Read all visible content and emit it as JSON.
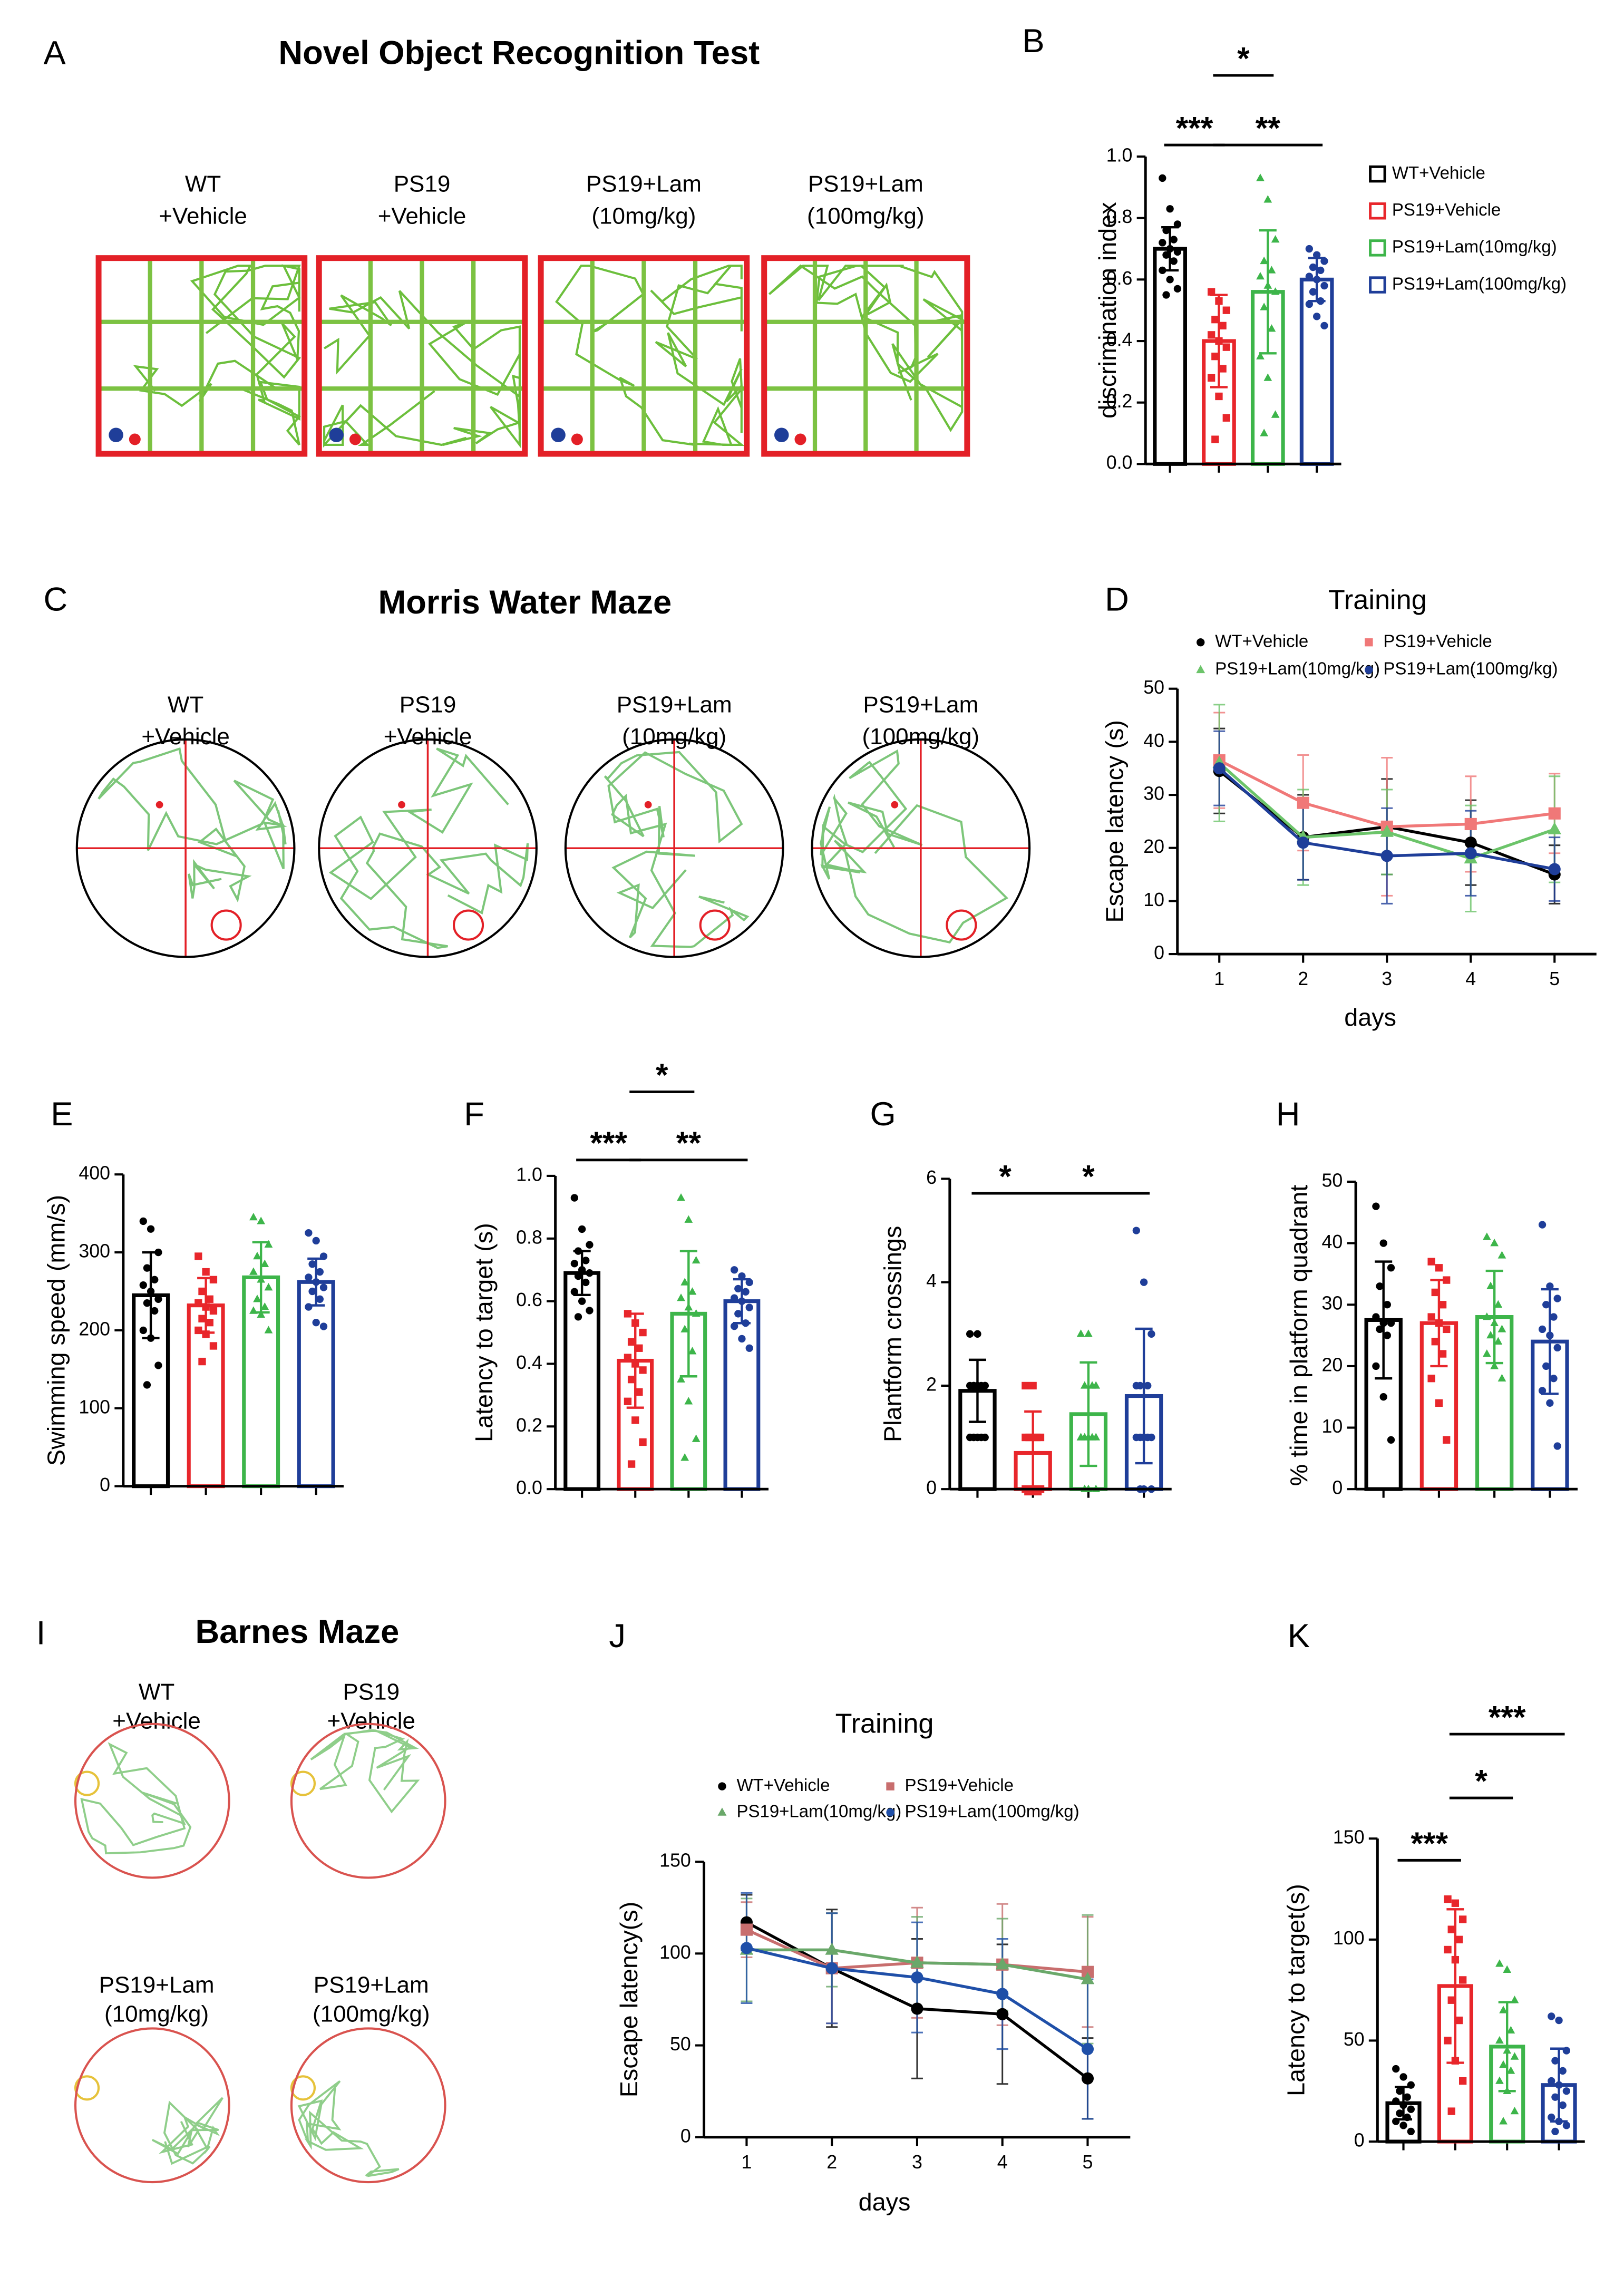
{
  "figure": {
    "panels": [
      {
        "letter": "A",
        "title": "Novel Object Recognition Test",
        "labels": [
          [
            "WT",
            "+Vehicle"
          ],
          [
            "PS19",
            "+Vehicle"
          ],
          [
            "PS19+Lam",
            "(10mg/kg)"
          ],
          [
            "PS19+Lam",
            "(100mg/kg)"
          ]
        ]
      },
      {
        "letter": "C",
        "title": "Morris Water Maze",
        "labels": [
          [
            "WT",
            "+Vehicle"
          ],
          [
            "PS19",
            "+Vehicle"
          ],
          [
            "PS19+Lam",
            "(10mg/kg)"
          ],
          [
            "PS19+Lam",
            "(100mg/kg)"
          ]
        ]
      },
      {
        "letter": "I",
        "title": "Barnes Maze",
        "labels": [
          [
            "WT",
            "+Vehicle"
          ],
          [
            "PS19",
            "+Vehicle"
          ],
          [
            "PS19+Lam",
            "(10mg/kg)"
          ],
          [
            "PS19+Lam",
            "(100mg/kg)"
          ]
        ]
      }
    ]
  },
  "chart_data": [
    {
      "type": "bar",
      "letter": "B",
      "y_label": "discrimination index",
      "ylim": [
        0,
        1.0
      ],
      "yticks": [
        {
          "value": 0,
          "label": "0.0"
        },
        {
          "value": 0.2,
          "label": "0.2"
        },
        {
          "value": 0.4,
          "label": "0.4"
        },
        {
          "value": 0.6,
          "label": "0.6"
        },
        {
          "value": 0.8,
          "label": "0.8"
        },
        {
          "value": 1.0,
          "label": "1.0"
        }
      ],
      "annotations": [
        "*",
        "***",
        "**"
      ],
      "series": [
        {
          "name": "WT+Vehicle",
          "color": "#000000",
          "marker": "circle",
          "values": [
            0.7
          ],
          "errors": [
            0.07
          ],
          "points": [
            0.93,
            0.83,
            0.78,
            0.76,
            0.73,
            0.72,
            0.7,
            0.69,
            0.68,
            0.66,
            0.63,
            0.6,
            0.57,
            0.55
          ]
        },
        {
          "name": "PS19+Vehicle",
          "color": "#e8262b",
          "marker": "square",
          "values": [
            0.4
          ],
          "errors": [
            0.15
          ],
          "points": [
            0.56,
            0.53,
            0.5,
            0.47,
            0.45,
            0.42,
            0.4,
            0.38,
            0.35,
            0.31,
            0.28,
            0.22,
            0.15,
            0.08
          ]
        },
        {
          "name": "PS19+Lam(10mg/kg)",
          "color": "#3db54a",
          "marker": "triangle",
          "values": [
            0.56
          ],
          "errors": [
            0.2
          ],
          "points": [
            0.93,
            0.86,
            0.73,
            0.66,
            0.63,
            0.61,
            0.58,
            0.56,
            0.51,
            0.44,
            0.35,
            0.28,
            0.16,
            0.1
          ]
        },
        {
          "name": "PS19+Lam(100mg/kg)",
          "color": "#1f3e99",
          "marker": "circle",
          "values": [
            0.6
          ],
          "errors": [
            0.07
          ],
          "points": [
            0.7,
            0.68,
            0.66,
            0.64,
            0.63,
            0.61,
            0.6,
            0.58,
            0.56,
            0.53,
            0.52,
            0.48,
            0.45
          ]
        }
      ]
    },
    {
      "type": "line",
      "letter": "D",
      "title": "Training",
      "x_label": "days",
      "y_label": "Escape latency (s)",
      "x": [
        1,
        2,
        3,
        4,
        5
      ],
      "xlim": [
        0.5,
        5.5
      ],
      "xticks": [
        1,
        2,
        3,
        4,
        5
      ],
      "ylim": [
        0,
        50
      ],
      "yticks": [
        0,
        10,
        20,
        30,
        40,
        50
      ],
      "series": [
        {
          "name": "WT+Vehicle",
          "color": "#000000",
          "marker": "circle",
          "values": [
            34.5,
            22,
            24,
            21,
            15
          ],
          "errors": [
            8,
            8,
            9,
            8,
            5.5
          ]
        },
        {
          "name": "PS19+Vehicle",
          "color": "#f07878",
          "marker": "square",
          "values": [
            36.5,
            28.5,
            24,
            24.5,
            26.5
          ],
          "errors": [
            9,
            9,
            13,
            9,
            7.5
          ]
        },
        {
          "name": "PS19+Lam(10mg/kg)",
          "color": "#6cc46a",
          "marker": "triangle",
          "values": [
            36,
            22,
            23,
            18,
            23.5
          ],
          "errors": [
            11,
            9,
            8,
            10,
            10
          ]
        },
        {
          "name": "PS19+Lam(100mg/kg)",
          "color": "#1f3e99",
          "marker": "circle",
          "values": [
            35,
            21,
            18.5,
            19,
            16
          ],
          "errors": [
            7,
            7,
            9,
            8,
            6
          ]
        }
      ]
    },
    {
      "type": "bar",
      "letter": "E",
      "y_label": "Swimming speed (mm/s)",
      "ylim": [
        0,
        400
      ],
      "yticks": [
        0,
        100,
        200,
        300,
        400
      ],
      "series": [
        {
          "color": "#000000",
          "marker": "circle",
          "values": [
            245
          ],
          "errors": [
            55
          ],
          "points": [
            340,
            330,
            300,
            280,
            265,
            258,
            250,
            240,
            235,
            225,
            200,
            190,
            155,
            130
          ]
        },
        {
          "color": "#e8262b",
          "marker": "square",
          "values": [
            232
          ],
          "errors": [
            35
          ],
          "points": [
            295,
            275,
            265,
            250,
            240,
            235,
            230,
            225,
            215,
            210,
            200,
            195,
            180,
            160
          ]
        },
        {
          "color": "#3db54a",
          "marker": "triangle",
          "values": [
            268
          ],
          "errors": [
            45
          ],
          "points": [
            345,
            340,
            310,
            295,
            285,
            275,
            265,
            255,
            240,
            230,
            225,
            220,
            200
          ]
        },
        {
          "color": "#1f3e99",
          "marker": "circle",
          "values": [
            262
          ],
          "errors": [
            30
          ],
          "points": [
            325,
            315,
            295,
            285,
            275,
            268,
            262,
            255,
            250,
            240,
            230,
            210,
            205
          ]
        }
      ]
    },
    {
      "type": "bar",
      "letter": "F",
      "y_label": "Latency to target (s)",
      "ylim": [
        0,
        1.0
      ],
      "yticks": [
        {
          "value": 0,
          "label": "0.0"
        },
        {
          "value": 0.2,
          "label": "0.2"
        },
        {
          "value": 0.4,
          "label": "0.4"
        },
        {
          "value": 0.6,
          "label": "0.6"
        },
        {
          "value": 0.8,
          "label": "0.8"
        },
        {
          "value": 1.0,
          "label": "1.0"
        }
      ],
      "annotations": [
        "*",
        "***",
        "**"
      ],
      "series": [
        {
          "color": "#000000",
          "marker": "circle",
          "values": [
            0.69
          ],
          "errors": [
            0.07
          ],
          "points": [
            0.93,
            0.83,
            0.78,
            0.76,
            0.73,
            0.72,
            0.7,
            0.69,
            0.68,
            0.66,
            0.63,
            0.6,
            0.57,
            0.55
          ]
        },
        {
          "color": "#e8262b",
          "marker": "square",
          "values": [
            0.41
          ],
          "errors": [
            0.15
          ],
          "points": [
            0.56,
            0.53,
            0.5,
            0.47,
            0.45,
            0.42,
            0.4,
            0.38,
            0.35,
            0.31,
            0.28,
            0.22,
            0.15,
            0.08
          ]
        },
        {
          "color": "#3db54a",
          "marker": "triangle",
          "values": [
            0.56
          ],
          "errors": [
            0.2
          ],
          "points": [
            0.93,
            0.86,
            0.73,
            0.66,
            0.63,
            0.61,
            0.58,
            0.56,
            0.51,
            0.44,
            0.35,
            0.28,
            0.16,
            0.1
          ]
        },
        {
          "color": "#1f3e99",
          "marker": "circle",
          "values": [
            0.6
          ],
          "errors": [
            0.07
          ],
          "points": [
            0.7,
            0.68,
            0.66,
            0.64,
            0.63,
            0.61,
            0.6,
            0.58,
            0.56,
            0.53,
            0.52,
            0.48,
            0.45
          ]
        }
      ]
    },
    {
      "type": "bar",
      "letter": "G",
      "y_label": "Plantform crossings",
      "ylim": [
        0,
        6
      ],
      "yticks": [
        0,
        2,
        4,
        6
      ],
      "annotations": [
        "*",
        "*"
      ],
      "series": [
        {
          "color": "#000000",
          "marker": "circle",
          "values": [
            1.9
          ],
          "errors": [
            0.6
          ],
          "points": [
            3,
            3,
            2,
            2,
            2,
            2,
            2,
            2,
            2,
            1,
            1,
            1,
            1,
            1
          ]
        },
        {
          "color": "#e8262b",
          "marker": "square",
          "values": [
            0.7
          ],
          "errors": [
            0.8
          ],
          "points": [
            2,
            2,
            1,
            1,
            1,
            1,
            1,
            0,
            0,
            0,
            0,
            0,
            0,
            0
          ]
        },
        {
          "color": "#3db54a",
          "marker": "triangle",
          "values": [
            1.45
          ],
          "errors": [
            1.0
          ],
          "points": [
            3,
            3,
            2,
            2,
            2,
            1,
            1,
            1,
            1,
            1,
            1,
            0,
            0,
            0
          ]
        },
        {
          "color": "#1f3e99",
          "marker": "circle",
          "values": [
            1.8
          ],
          "errors": [
            1.3
          ],
          "points": [
            5,
            4,
            3,
            2,
            2,
            2,
            1,
            1,
            1,
            1,
            1,
            0,
            0,
            0
          ]
        }
      ]
    },
    {
      "type": "bar",
      "letter": "H",
      "y_label": "% time in platform quadrant",
      "ylim": [
        0,
        50
      ],
      "yticks": [
        0,
        10,
        20,
        30,
        40,
        50
      ],
      "series": [
        {
          "color": "#000000",
          "marker": "circle",
          "values": [
            27.5
          ],
          "errors": [
            9.5
          ],
          "points": [
            46,
            40,
            36,
            33,
            30,
            28,
            27,
            27,
            26,
            25,
            20,
            15,
            8
          ]
        },
        {
          "color": "#e8262b",
          "marker": "square",
          "values": [
            27
          ],
          "errors": [
            7
          ],
          "points": [
            37,
            36,
            34,
            32,
            30,
            28,
            27,
            26,
            24,
            22,
            18,
            14,
            8
          ]
        },
        {
          "color": "#3db54a",
          "marker": "triangle",
          "values": [
            28
          ],
          "errors": [
            7.5
          ],
          "points": [
            41,
            40,
            38,
            33,
            30,
            28,
            27,
            26,
            25,
            24,
            22,
            20,
            18
          ]
        },
        {
          "color": "#1f3e99",
          "marker": "circle",
          "values": [
            24
          ],
          "errors": [
            8.5
          ],
          "points": [
            43,
            33,
            31,
            30,
            28,
            26,
            25,
            23,
            20,
            18,
            16,
            14,
            7
          ]
        }
      ]
    },
    {
      "type": "line",
      "letter": "J",
      "title": "Training",
      "x_label": "days",
      "y_label": "Escape latency(s)",
      "x": [
        1,
        2,
        3,
        4,
        5
      ],
      "xlim": [
        0.5,
        5.5
      ],
      "xticks": [
        1,
        2,
        3,
        4,
        5
      ],
      "ylim": [
        0,
        150
      ],
      "yticks": [
        0,
        50,
        100,
        150
      ],
      "series": [
        {
          "name": "WT+Vehicle",
          "color": "#000000",
          "marker": "circle",
          "values": [
            117,
            92,
            70,
            67,
            32
          ],
          "errors": [
            15,
            32,
            38,
            38,
            22
          ]
        },
        {
          "name": "PS19+Vehicle",
          "color": "#c86e6e",
          "marker": "square",
          "values": [
            113,
            92,
            95,
            94,
            90
          ],
          "errors": [
            15,
            30,
            30,
            33,
            30
          ]
        },
        {
          "name": "PS19+Lam(10mg/kg)",
          "color": "#6aa86a",
          "marker": "triangle",
          "values": [
            102,
            102,
            95,
            94,
            86
          ],
          "errors": [
            28,
            20,
            25,
            25,
            35
          ]
        },
        {
          "name": "PS19+Lam(100mg/kg)",
          "color": "#1f4fa8",
          "marker": "circle",
          "values": [
            103,
            92,
            87,
            78,
            48
          ],
          "errors": [
            30,
            30,
            30,
            30,
            38
          ]
        }
      ]
    },
    {
      "type": "bar",
      "letter": "K",
      "y_label": "Latency to target(s)",
      "ylim": [
        0,
        150
      ],
      "yticks": [
        0,
        50,
        100,
        150
      ],
      "annotations": [
        "***",
        "*",
        "***"
      ],
      "series": [
        {
          "color": "#000000",
          "marker": "circle",
          "values": [
            19
          ],
          "errors": [
            8
          ],
          "points": [
            36,
            32,
            28,
            25,
            22,
            20,
            18,
            16,
            14,
            12,
            10,
            8,
            5
          ]
        },
        {
          "color": "#e8262b",
          "marker": "square",
          "values": [
            77
          ],
          "errors": [
            38
          ],
          "points": [
            120,
            118,
            110,
            105,
            100,
            95,
            90,
            80,
            70,
            60,
            50,
            40,
            30,
            15
          ]
        },
        {
          "color": "#3db54a",
          "marker": "triangle",
          "values": [
            47
          ],
          "errors": [
            22
          ],
          "points": [
            88,
            85,
            70,
            65,
            55,
            50,
            45,
            42,
            38,
            35,
            30,
            25,
            15,
            10
          ]
        },
        {
          "color": "#1f3e99",
          "marker": "circle",
          "values": [
            28
          ],
          "errors": [
            18
          ],
          "points": [
            62,
            60,
            45,
            40,
            35,
            30,
            28,
            25,
            22,
            18,
            12,
            10,
            8,
            5
          ]
        }
      ]
    }
  ]
}
